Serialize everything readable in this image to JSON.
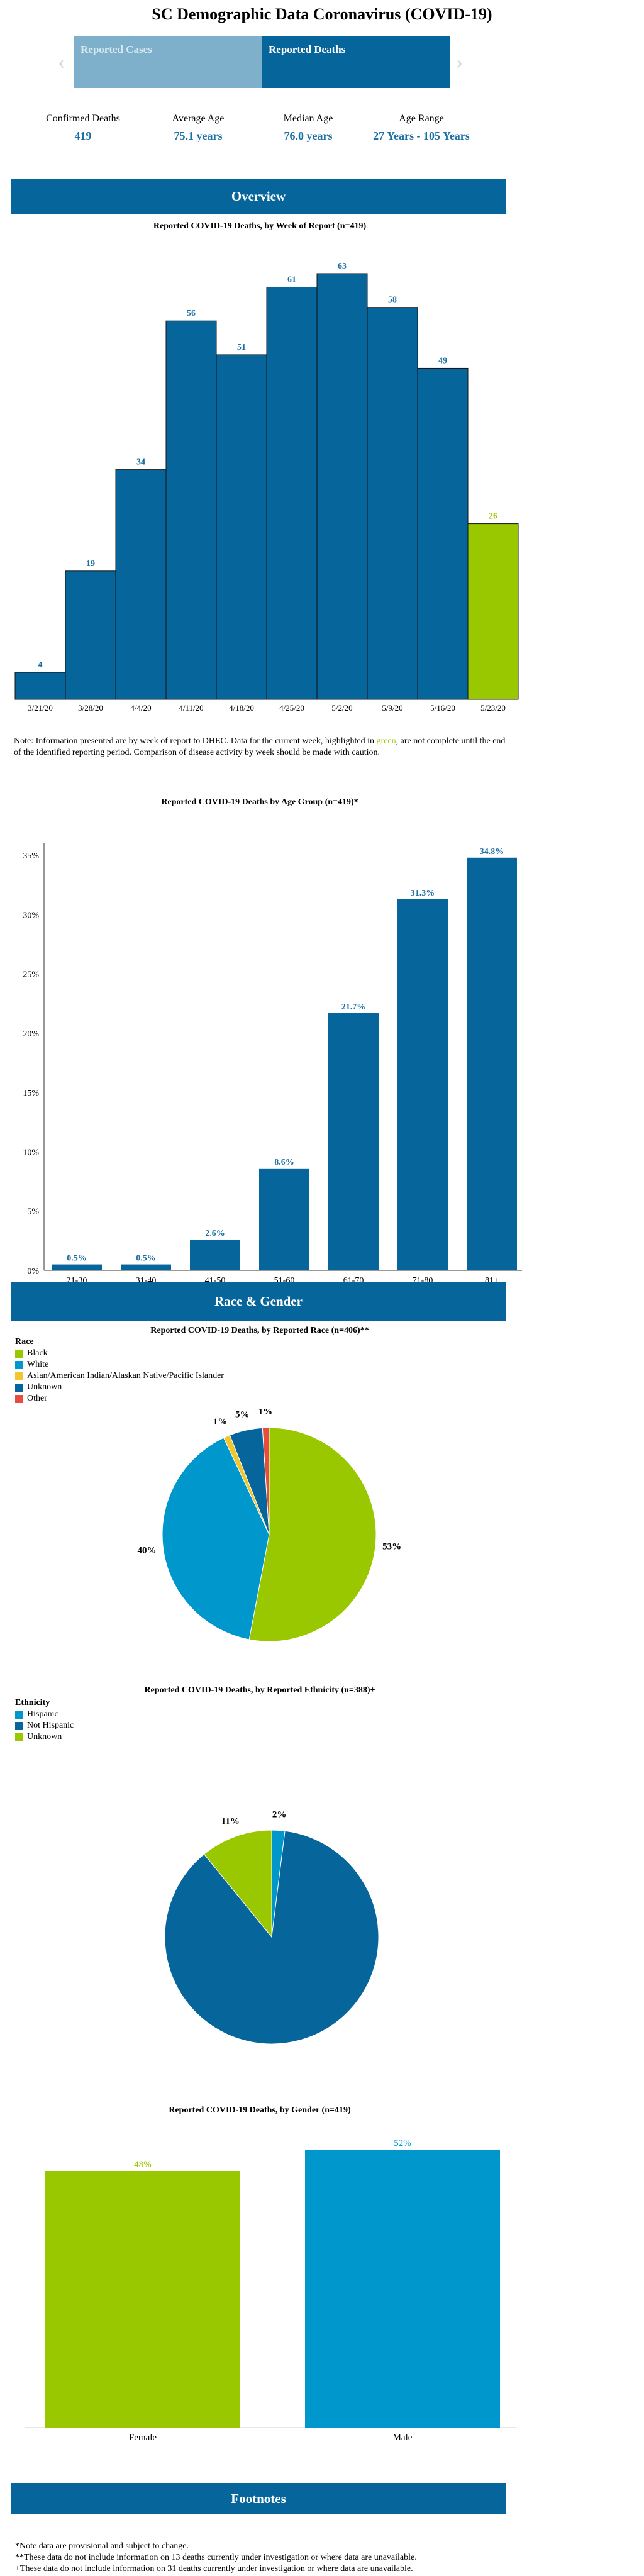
{
  "page_title": "SC Demographic Data Coronavirus (COVID-19)",
  "tabs": [
    {
      "label": "Reported Cases"
    },
    {
      "label": "Reported Deaths"
    }
  ],
  "arrows": {
    "left": "‹",
    "right": "›"
  },
  "stats": [
    {
      "label": "Confirmed Deaths",
      "value": "419"
    },
    {
      "label": "Average Age",
      "value": "75.1 years"
    },
    {
      "label": "Median Age",
      "value": "76.0 years"
    },
    {
      "label": "Age Range",
      "value": "27 Years - 105 Years"
    }
  ],
  "sections": {
    "overview": "Overview",
    "race_gender": "Race & Gender",
    "footnotes": "Footnotes"
  },
  "colors": {
    "primary": "#06659a",
    "highlight": "#99c800",
    "label_blue": "#1a6fa3",
    "cyan": "#0097cc",
    "yellow": "#f3c530",
    "red": "#e84c3d"
  },
  "week_note": {
    "before": "Note: Information presented are by week of report to DHEC. Data for the current week, highlighted in ",
    "green_word": "green",
    "after": ", are not complete until the end of the identified reporting period. Comparison of disease activity by week should be made with caution."
  },
  "footnotes": [
    "*Note data are provisional and subject to change.",
    "**These data do not include information on 13 deaths currently under investigation or where data are unavailable.",
    "+These data do not include information on 31 deaths currently under investigation or where data are unavailable."
  ],
  "chart_data": [
    {
      "type": "bar",
      "title": "Reported COVID-19 Deaths, by Week of Report (n=419)",
      "categories": [
        "3/21/20",
        "3/28/20",
        "4/4/20",
        "4/11/20",
        "4/18/20",
        "4/25/20",
        "5/2/20",
        "5/9/20",
        "5/16/20",
        "5/23/20"
      ],
      "values": [
        4,
        19,
        34,
        56,
        51,
        61,
        63,
        58,
        49,
        26
      ],
      "highlight_index": 9,
      "ylim": [
        0,
        67
      ],
      "grid": false
    },
    {
      "type": "bar",
      "title": "Reported COVID-19 Deaths by Age Group (n=419)*",
      "categories": [
        "21-30",
        "31-40",
        "41-50",
        "51-60",
        "61-70",
        "71-80",
        "81+"
      ],
      "values": [
        0.5,
        0.5,
        2.6,
        8.6,
        21.7,
        31.3,
        34.8
      ],
      "value_labels": [
        "0.5%",
        "0.5%",
        "2.6%",
        "8.6%",
        "21.7%",
        "31.3%",
        "34.8%"
      ],
      "yticks": [
        "0%",
        "5%",
        "10%",
        "15%",
        "20%",
        "25%",
        "30%",
        "35%"
      ],
      "ylim": [
        0,
        35
      ],
      "grid": false
    },
    {
      "type": "pie",
      "title": "Reported COVID-19 Deaths, by Reported Race (n=406)**",
      "legend_title": "Race",
      "legend_placement": "top-left",
      "labels": [
        "Black",
        "White",
        "Asian/American Indian/Alaskan Native/Pacific Islander",
        "Unknown",
        "Other"
      ],
      "values": [
        53,
        40,
        1,
        5,
        1
      ],
      "value_labels": [
        "53%",
        "40%",
        "1%",
        "5%",
        "1%"
      ],
      "colors": [
        "#99c800",
        "#0097cc",
        "#f3c530",
        "#06659a",
        "#e84c3d"
      ]
    },
    {
      "type": "pie",
      "title": "Reported COVID-19 Deaths, by Reported Ethnicity (n=388)+",
      "legend_title": "Ethnicity",
      "legend_placement": "top-left",
      "labels": [
        "Hispanic",
        "Not Hispanic",
        "Unknown"
      ],
      "values": [
        2,
        88,
        11
      ],
      "value_labels": [
        "2%",
        "88%",
        "11%"
      ],
      "colors": [
        "#0097cc",
        "#06659a",
        "#99c800"
      ]
    },
    {
      "type": "bar",
      "title": "Reported COVID-19 Deaths, by Gender (n=419)",
      "categories": [
        "Female",
        "Male"
      ],
      "values": [
        48,
        52
      ],
      "value_labels": [
        "48%",
        "52%"
      ],
      "colors": [
        "#99c800",
        "#0097cc"
      ],
      "ylim": [
        0,
        60
      ],
      "grid": false
    }
  ]
}
